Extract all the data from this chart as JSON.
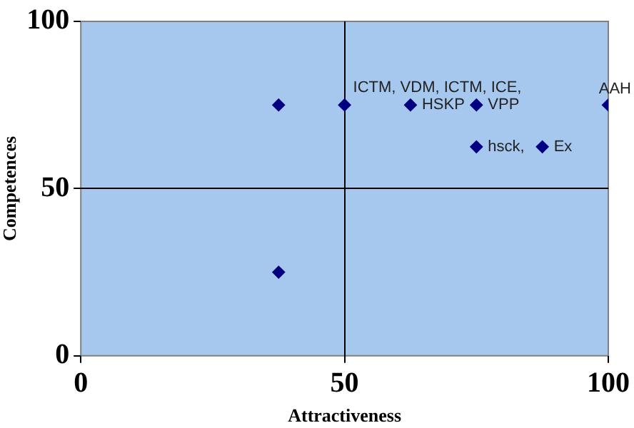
{
  "chart_data": {
    "type": "scatter",
    "xlabel": "Attractiveness",
    "ylabel": "Competences",
    "x": [
      37.5,
      37.5,
      50,
      62.5,
      75,
      75,
      87.5,
      100
    ],
    "values": [
      75,
      25,
      75,
      75,
      75,
      62.5,
      62.5,
      75
    ],
    "color": "#000080",
    "marker": "diamond",
    "xlim": [
      0,
      100
    ],
    "xticks": [
      0,
      50,
      100
    ],
    "ylim": [
      0,
      100
    ],
    "yticks": [
      0,
      50,
      100
    ],
    "grid": true,
    "legend": false,
    "annotations": [
      {
        "text": "ICTM, VDM, ICTM, ICE,",
        "x": 50,
        "y": 75
      },
      {
        "text": "HSKP",
        "x": 62.5,
        "y": 75
      },
      {
        "text": "VPP",
        "x": 75,
        "y": 75
      },
      {
        "text": "hsck,",
        "x": 75,
        "y": 62.5
      },
      {
        "text": "Ex",
        "x": 87.5,
        "y": 62.5
      },
      {
        "text": "AAH",
        "x": 100,
        "y": 75
      }
    ]
  }
}
